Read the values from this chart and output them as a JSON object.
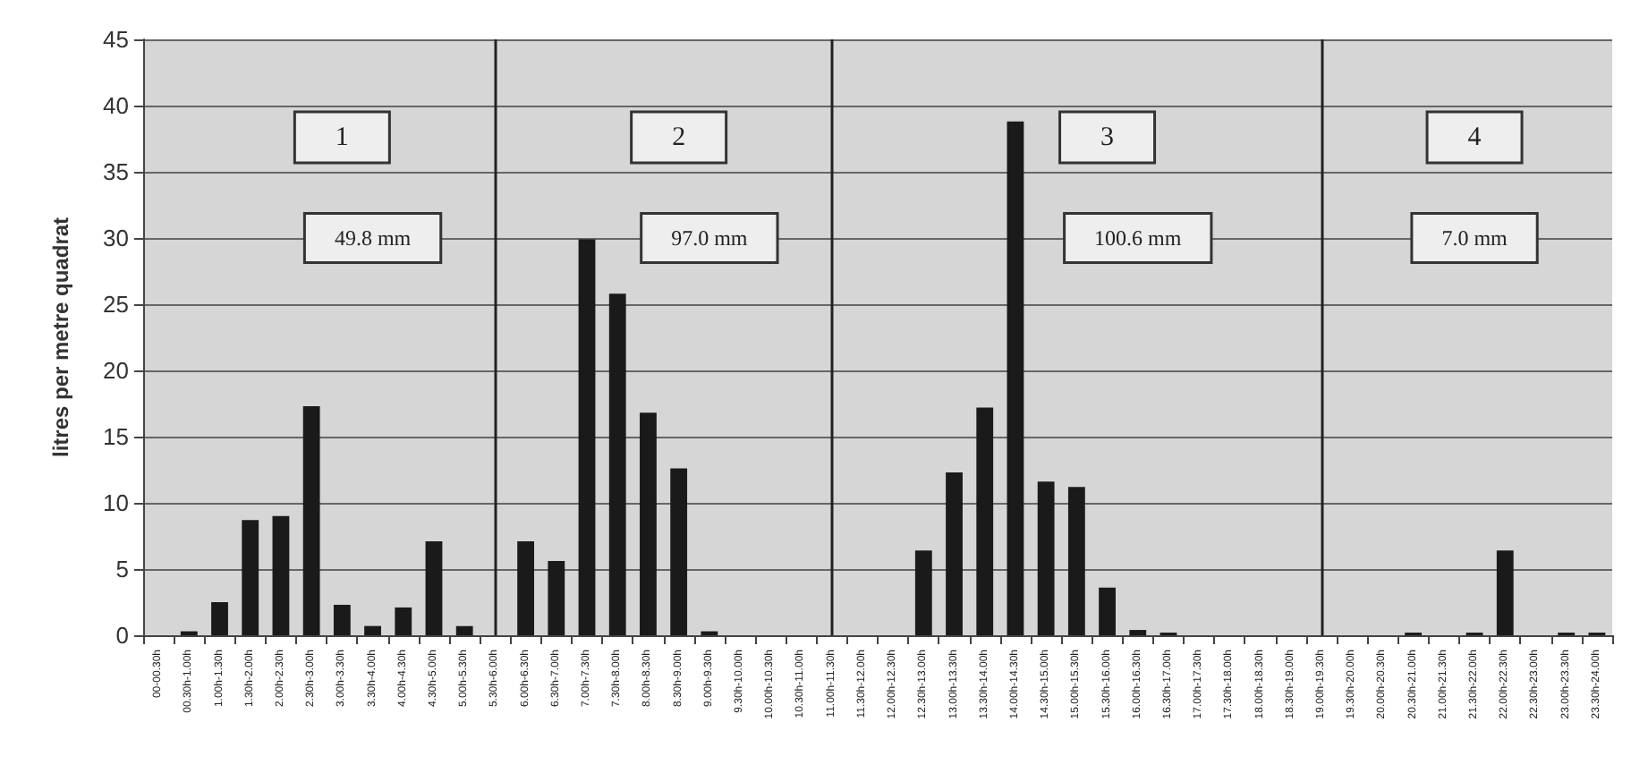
{
  "chart_data": {
    "type": "bar",
    "ylabel": "litres per metre quadrat",
    "categories": [
      "00-00.30h",
      "00.30h-1.00h",
      "1.00h-1.30h",
      "1.30h-2.00h",
      "2.00h-2.30h",
      "2.30h-3.00h",
      "3.00h-3.30h",
      "3.30h-4.00h",
      "4.00h-4.30h",
      "4.30h-5.00h",
      "5.00h-5.30h",
      "5.30h-6.00h",
      "6.00h-6.30h",
      "6.30h-7.00h",
      "7.00h-7.30h",
      "7.30h-8.00h",
      "8.00h-8.30h",
      "8.30h-9.00h",
      "9.00h-9.30h",
      "9.30h-10.00h",
      "10.00h-10.30h",
      "10.30h-11.00h",
      "11.00h-11.30h",
      "11.30h-12.00h",
      "12.00h-12.30h",
      "12.30h-13.00h",
      "13.00h-13.30h",
      "13.30h-14.00h",
      "14.00h-14.30h",
      "14.30h-15.00h",
      "15.00h-15.30h",
      "15.30h-16.00h",
      "16.00h-16.30h",
      "16.30h-17.00h",
      "17.00h-17.30h",
      "17.30h-18.00h",
      "18.00h-18.30h",
      "18.30h-19.00h",
      "19.00h-19.30h",
      "19.30h-20.00h",
      "20.00h-20.30h",
      "20.30h-21.00h",
      "21.00h-21.30h",
      "21.30h-22.00h",
      "22.00h-22.30h",
      "22.30h-23.00h",
      "23.00h-23.30h",
      "23.30h-24.00h"
    ],
    "values": [
      0,
      0.3,
      2.5,
      8.7,
      9.0,
      17.3,
      2.3,
      0.7,
      2.1,
      7.1,
      0.7,
      0,
      7.1,
      5.6,
      29.9,
      25.8,
      16.8,
      12.6,
      0.3,
      0,
      0,
      0,
      0,
      0,
      0,
      6.4,
      12.3,
      17.2,
      38.8,
      11.6,
      11.2,
      3.6,
      0.4,
      0.2,
      0,
      0,
      0,
      0,
      0,
      0,
      0,
      0.2,
      0,
      0.2,
      6.4,
      0,
      0.2,
      0.2
    ],
    "color": "#1a1a1a",
    "ylim": [
      0,
      45
    ],
    "yticks": [
      0,
      5,
      10,
      15,
      20,
      25,
      30,
      35,
      40,
      45
    ],
    "grid": "y",
    "ref_lines": [
      {
        "axis": "x",
        "value": "5.30h-6.00h",
        "color": "#222222"
      },
      {
        "axis": "x",
        "value": "11.00h-11.30h",
        "color": "#222222"
      },
      {
        "axis": "x",
        "value": "19.00h-19.30h",
        "color": "#222222"
      }
    ],
    "annotations": [
      "1",
      "49.8 mm",
      "2",
      "97.0 mm",
      "3",
      "100.6 mm",
      "4",
      "7.0 mm"
    ]
  }
}
